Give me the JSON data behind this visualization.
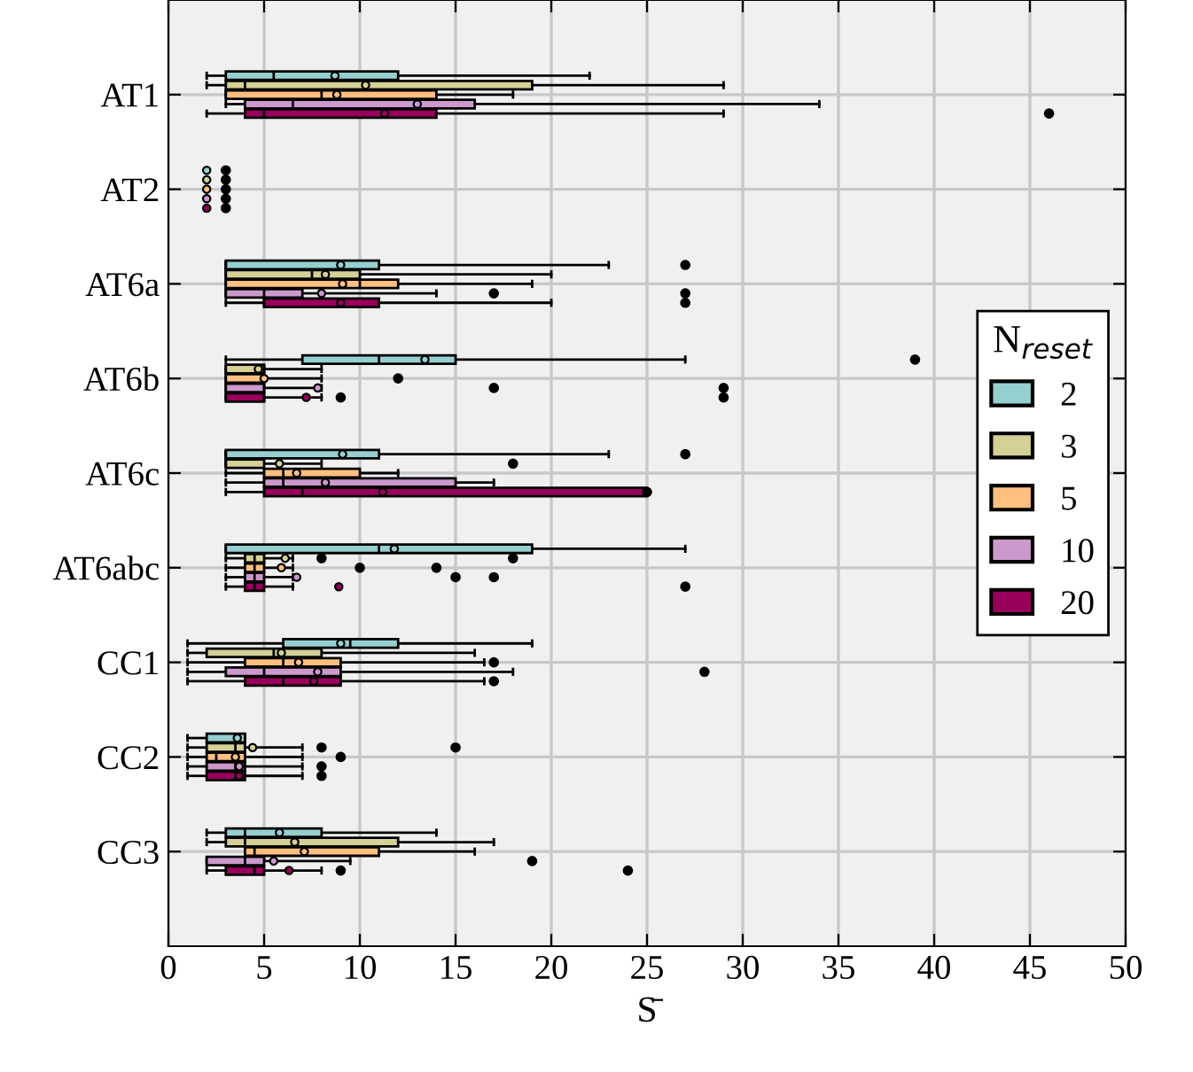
{
  "chart_data": {
    "type": "box",
    "orientation": "horizontal",
    "xlabel": "S̄",
    "legend_title": "N$_{reset}$",
    "legend": "right",
    "grid": true,
    "xlim": [
      0,
      50
    ],
    "xticks": [
      0,
      5,
      10,
      15,
      20,
      25,
      30,
      35,
      40,
      45,
      50
    ],
    "categories": [
      "AT1",
      "AT2",
      "AT6a",
      "AT6b",
      "AT6c",
      "AT6abc",
      "CC1",
      "CC2",
      "CC3"
    ],
    "series": [
      {
        "name": "2",
        "color": "#96cfcf",
        "boxes": [
          {
            "low": 2,
            "q1": 3,
            "median": 5.5,
            "q3": 12,
            "high": 22,
            "mean": 8.7
          },
          {
            "low": 2,
            "q1": 2,
            "median": 2,
            "q3": 2,
            "high": 2,
            "mean": 2,
            "outliers": [
              3
            ]
          },
          {
            "low": 3,
            "q1": 3,
            "median": 3,
            "q3": 11,
            "high": 23,
            "mean": 9,
            "outliers": [
              27
            ]
          },
          {
            "low": 3,
            "q1": 7,
            "median": 11,
            "q3": 15,
            "high": 27,
            "mean": 13.4,
            "outliers": [
              39
            ]
          },
          {
            "low": 3,
            "q1": 3,
            "median": 3,
            "q3": 11,
            "high": 23,
            "mean": 9.1,
            "outliers": [
              27
            ]
          },
          {
            "low": 3,
            "q1": 3,
            "median": 11,
            "q3": 19,
            "high": 27,
            "mean": 11.8
          },
          {
            "low": 1,
            "q1": 6,
            "median": 9.5,
            "q3": 12,
            "high": 19,
            "mean": 9
          },
          {
            "low": 1,
            "q1": 2,
            "median": 3.5,
            "q3": 4,
            "high": 4,
            "mean": 3.6
          },
          {
            "low": 2,
            "q1": 3,
            "median": 4,
            "q3": 8,
            "high": 14,
            "mean": 5.8
          }
        ]
      },
      {
        "name": "3",
        "color": "#d4d096",
        "boxes": [
          {
            "low": 2,
            "q1": 3,
            "median": 4,
            "q3": 19,
            "high": 29,
            "mean": 10.3
          },
          {
            "low": 2,
            "q1": 2,
            "median": 2,
            "q3": 2,
            "high": 2,
            "mean": 2,
            "outliers": [
              3
            ]
          },
          {
            "low": 3,
            "q1": 3,
            "median": 7.5,
            "q3": 10,
            "high": 20,
            "mean": 8.2
          },
          {
            "low": 3,
            "q1": 3,
            "median": 5,
            "q3": 5,
            "high": 8,
            "mean": 4.7
          },
          {
            "low": 3,
            "q1": 3,
            "median": 3,
            "q3": 5,
            "high": 8,
            "mean": 5.8,
            "outliers": [
              18
            ]
          },
          {
            "low": 3,
            "q1": 4,
            "median": 4.5,
            "q3": 5,
            "high": 6.5,
            "mean": 6.1,
            "outliers": [
              8,
              18
            ]
          },
          {
            "low": 1,
            "q1": 2,
            "median": 5.5,
            "q3": 8,
            "high": 16,
            "mean": 5.9
          },
          {
            "low": 1,
            "q1": 2,
            "median": 3.5,
            "q3": 4,
            "high": 7,
            "mean": 4.4,
            "outliers": [
              8,
              15
            ]
          },
          {
            "low": 2,
            "q1": 3,
            "median": 4,
            "q3": 12,
            "high": 17,
            "mean": 6.6
          }
        ]
      },
      {
        "name": "5",
        "color": "#ffbf80",
        "boxes": [
          {
            "low": 3,
            "q1": 3,
            "median": 8,
            "q3": 14,
            "high": 18,
            "mean": 8.8
          },
          {
            "low": 2,
            "q1": 2,
            "median": 2,
            "q3": 2,
            "high": 2,
            "mean": 2,
            "outliers": [
              3
            ]
          },
          {
            "low": 3,
            "q1": 3,
            "median": 10,
            "q3": 12,
            "high": 19,
            "mean": 9.1
          },
          {
            "low": 3,
            "q1": 3,
            "median": 5,
            "q3": 5,
            "high": 8,
            "mean": 5,
            "outliers": [
              12
            ]
          },
          {
            "low": 3,
            "q1": 5,
            "median": 6,
            "q3": 10,
            "high": 12,
            "mean": 6.7
          },
          {
            "low": 3,
            "q1": 4,
            "median": 4.5,
            "q3": 5,
            "high": 6.5,
            "mean": 5.9,
            "outliers": [
              10,
              14
            ]
          },
          {
            "low": 1,
            "q1": 4,
            "median": 6,
            "q3": 9,
            "high": 16.5,
            "mean": 6.8,
            "outliers": [
              17
            ]
          },
          {
            "low": 1,
            "q1": 2,
            "median": 2.5,
            "q3": 4,
            "high": 7,
            "mean": 3.5,
            "outliers": [
              9
            ]
          },
          {
            "low": 4,
            "q1": 4,
            "median": 4.5,
            "q3": 11,
            "high": 16,
            "mean": 7.1
          }
        ]
      },
      {
        "name": "10",
        "color": "#cc99cc",
        "boxes": [
          {
            "low": 3,
            "q1": 4,
            "median": 6.5,
            "q3": 16,
            "high": 34,
            "mean": 13
          },
          {
            "low": 2,
            "q1": 2,
            "median": 2,
            "q3": 2,
            "high": 2,
            "mean": 2,
            "outliers": [
              3
            ]
          },
          {
            "low": 3,
            "q1": 3,
            "median": 5,
            "q3": 7,
            "high": 14,
            "mean": 8,
            "outliers": [
              17,
              27
            ]
          },
          {
            "low": 3,
            "q1": 3,
            "median": 5,
            "q3": 5,
            "high": 8,
            "mean": 7.8,
            "outliers": [
              17,
              29
            ]
          },
          {
            "low": 3,
            "q1": 5,
            "median": 6,
            "q3": 15,
            "high": 17,
            "mean": 8.2
          },
          {
            "low": 3,
            "q1": 4,
            "median": 4.5,
            "q3": 5,
            "high": 6.5,
            "mean": 6.7,
            "outliers": [
              15,
              17
            ]
          },
          {
            "low": 1,
            "q1": 3,
            "median": 5,
            "q3": 9,
            "high": 18,
            "mean": 7.8,
            "outliers": [
              28
            ]
          },
          {
            "low": 1,
            "q1": 2,
            "median": 3.5,
            "q3": 4,
            "high": 7,
            "mean": 3.7,
            "outliers": [
              8
            ]
          },
          {
            "low": 2,
            "q1": 2,
            "median": 4,
            "q3": 5,
            "high": 9.5,
            "mean": 5.5,
            "outliers": [
              19
            ]
          }
        ]
      },
      {
        "name": "20",
        "color": "#99005c",
        "boxes": [
          {
            "low": 2,
            "q1": 4,
            "median": 5,
            "q3": 14,
            "high": 29,
            "mean": 11.3,
            "outliers": [
              46
            ]
          },
          {
            "low": 2,
            "q1": 2,
            "median": 2,
            "q3": 2,
            "high": 2,
            "mean": 2,
            "outliers": [
              3
            ]
          },
          {
            "low": 3,
            "q1": 5,
            "median": 5,
            "q3": 11,
            "high": 20,
            "mean": 9,
            "outliers": [
              27
            ]
          },
          {
            "low": 3,
            "q1": 3,
            "median": 5,
            "q3": 5,
            "high": 8,
            "mean": 7.2,
            "outliers": [
              9,
              29
            ]
          },
          {
            "low": 3,
            "q1": 5,
            "median": 7,
            "q3": 25,
            "high": 25,
            "mean": 11.2,
            "outliers": [
              25
            ]
          },
          {
            "low": 3,
            "q1": 4,
            "median": 4.5,
            "q3": 5,
            "high": 6.5,
            "mean": 8.9,
            "outliers": [
              27
            ]
          },
          {
            "low": 1,
            "q1": 4,
            "median": 6,
            "q3": 9,
            "high": 16.5,
            "mean": 7.6,
            "outliers": [
              17
            ]
          },
          {
            "low": 1,
            "q1": 2,
            "median": 3.5,
            "q3": 4,
            "high": 7,
            "mean": 3.7,
            "outliers": [
              8
            ]
          },
          {
            "low": 2,
            "q1": 3,
            "median": 4.5,
            "q3": 5,
            "high": 8,
            "mean": 6.3,
            "outliers": [
              9,
              24
            ]
          }
        ]
      }
    ]
  }
}
